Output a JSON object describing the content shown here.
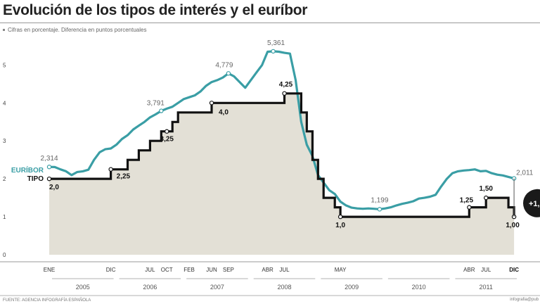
{
  "title": "Evolución de los tipos de interés y el euríbor",
  "subtitle": "Cifras en porcentaje. Diferencia en puntos porcentuales",
  "source": "FUENTE: AGENCIA INFOGRAFÍA ESPAÑOLA",
  "credit": "infografia@pub",
  "badge_text": "+1,",
  "colors": {
    "euribor": "#3a9ea5",
    "tipo": "#111111",
    "fill": "#e3e0d6"
  },
  "chart_data": {
    "type": "line",
    "ylim": [
      0,
      5.6
    ],
    "yticks": [
      "0",
      "1",
      "2",
      "3",
      "4",
      "5"
    ],
    "x_range": [
      2005.0,
      2011.958
    ],
    "month_ticks": [
      {
        "label": "ENE",
        "x": 2005.0
      },
      {
        "label": "DIC",
        "x": 2005.917
      },
      {
        "label": "JUL",
        "x": 2006.5
      },
      {
        "label": "OCT",
        "x": 2006.75
      },
      {
        "label": "FEB",
        "x": 2007.083
      },
      {
        "label": "JUN",
        "x": 2007.417
      },
      {
        "label": "SEP",
        "x": 2007.667
      },
      {
        "label": "ABR",
        "x": 2008.25
      },
      {
        "label": "JUL",
        "x": 2008.5
      },
      {
        "label": "MAY",
        "x": 2009.333
      },
      {
        "label": "ABR",
        "x": 2011.25
      },
      {
        "label": "JUL",
        "x": 2011.5
      },
      {
        "label": "DIC",
        "x": 2011.917,
        "bold": true
      }
    ],
    "years": [
      {
        "label": "2005",
        "from": 2005.0,
        "to": 2006.0
      },
      {
        "label": "2006",
        "from": 2006.0,
        "to": 2007.0
      },
      {
        "label": "2007",
        "from": 2007.0,
        "to": 2008.0
      },
      {
        "label": "2008",
        "from": 2008.0,
        "to": 2009.0
      },
      {
        "label": "2009",
        "from": 2009.0,
        "to": 2010.0
      },
      {
        "label": "2010",
        "from": 2010.0,
        "to": 2011.0
      },
      {
        "label": "2011",
        "from": 2011.0,
        "to": 2012.0
      }
    ],
    "series": [
      {
        "name": "EURÍBOR",
        "x": [
          2005.0,
          2005.083,
          2005.167,
          2005.25,
          2005.333,
          2005.417,
          2005.5,
          2005.583,
          2005.667,
          2005.75,
          2005.833,
          2005.917,
          2006.0,
          2006.083,
          2006.167,
          2006.25,
          2006.333,
          2006.417,
          2006.5,
          2006.583,
          2006.667,
          2006.75,
          2006.833,
          2006.917,
          2007.0,
          2007.083,
          2007.167,
          2007.25,
          2007.333,
          2007.417,
          2007.5,
          2007.583,
          2007.667,
          2007.75,
          2007.833,
          2007.917,
          2008.0,
          2008.083,
          2008.167,
          2008.25,
          2008.333,
          2008.417,
          2008.5,
          2008.583,
          2008.667,
          2008.75,
          2008.833,
          2008.917,
          2009.0,
          2009.083,
          2009.167,
          2009.25,
          2009.333,
          2009.417,
          2009.5,
          2009.583,
          2009.667,
          2009.75,
          2009.833,
          2009.917,
          2010.0,
          2010.083,
          2010.167,
          2010.25,
          2010.333,
          2010.417,
          2010.5,
          2010.583,
          2010.667,
          2010.75,
          2010.833,
          2010.917,
          2011.0,
          2011.083,
          2011.167,
          2011.25,
          2011.333,
          2011.417,
          2011.5,
          2011.583,
          2011.667,
          2011.75,
          2011.833,
          2011.917
        ],
        "y": [
          2.314,
          2.31,
          2.25,
          2.2,
          2.1,
          2.18,
          2.2,
          2.24,
          2.5,
          2.7,
          2.78,
          2.8,
          2.9,
          3.05,
          3.15,
          3.3,
          3.4,
          3.5,
          3.62,
          3.7,
          3.791,
          3.85,
          3.9,
          4.0,
          4.1,
          4.15,
          4.2,
          4.3,
          4.45,
          4.55,
          4.6,
          4.67,
          4.779,
          4.7,
          4.55,
          4.4,
          4.6,
          4.8,
          5.0,
          5.35,
          5.361,
          5.35,
          5.32,
          5.3,
          4.6,
          3.5,
          2.9,
          2.6,
          2.1,
          1.9,
          1.7,
          1.6,
          1.4,
          1.3,
          1.24,
          1.22,
          1.21,
          1.22,
          1.21,
          1.199,
          1.22,
          1.25,
          1.3,
          1.34,
          1.37,
          1.41,
          1.48,
          1.5,
          1.53,
          1.58,
          1.8,
          2.0,
          2.15,
          2.2,
          2.22,
          2.23,
          2.25,
          2.2,
          2.21,
          2.15,
          2.11,
          2.09,
          2.05,
          2.011
        ]
      },
      {
        "name": "TIPO",
        "x": [
          2005.0,
          2005.917,
          2006.167,
          2006.333,
          2006.5,
          2006.667,
          2006.833,
          2006.917,
          2007.0,
          2007.25,
          2007.417,
          2007.583,
          2008.25,
          2008.5,
          2008.75,
          2008.833,
          2008.917,
          2009.0,
          2009.083,
          2009.25,
          2009.333,
          2011.25,
          2011.5,
          2011.833,
          2011.917
        ],
        "y": [
          2.0,
          2.25,
          2.5,
          2.75,
          3.0,
          3.25,
          3.5,
          3.75,
          3.75,
          3.75,
          4.0,
          4.0,
          4.0,
          4.25,
          3.75,
          3.25,
          2.5,
          2.0,
          1.5,
          1.25,
          1.0,
          1.25,
          1.5,
          1.25,
          1.0
        ]
      }
    ],
    "annotations": [
      {
        "series": "EURÍBOR",
        "x": 2005.0,
        "y": 2.314,
        "text": "2,314"
      },
      {
        "series": "EURÍBOR",
        "x": 2006.667,
        "y": 3.791,
        "text": "3,791"
      },
      {
        "series": "EURÍBOR",
        "x": 2007.667,
        "y": 4.779,
        "text": "4,779"
      },
      {
        "series": "EURÍBOR",
        "x": 2008.333,
        "y": 5.361,
        "text": "5,361"
      },
      {
        "series": "EURÍBOR",
        "x": 2009.917,
        "y": 1.199,
        "text": "1,199"
      },
      {
        "series": "EURÍBOR",
        "x": 2011.917,
        "y": 2.011,
        "text": "2,011"
      },
      {
        "series": "TIPO",
        "x": 2005.0,
        "y": 2.0,
        "text": "2,0"
      },
      {
        "series": "TIPO",
        "x": 2005.917,
        "y": 2.25,
        "text": "2,25"
      },
      {
        "series": "TIPO",
        "x": 2006.75,
        "y": 3.25,
        "text": "3,25"
      },
      {
        "series": "TIPO",
        "x": 2007.417,
        "y": 4.0,
        "text": "4,0"
      },
      {
        "series": "TIPO",
        "x": 2008.5,
        "y": 4.25,
        "text": "4,25"
      },
      {
        "series": "TIPO",
        "x": 2009.333,
        "y": 1.0,
        "text": "1,0"
      },
      {
        "series": "TIPO",
        "x": 2011.25,
        "y": 1.25,
        "text": "1,25"
      },
      {
        "series": "TIPO",
        "x": 2011.5,
        "y": 1.5,
        "text": "1,50"
      },
      {
        "series": "TIPO",
        "x": 2011.917,
        "y": 1.0,
        "text": "1,00"
      }
    ]
  }
}
